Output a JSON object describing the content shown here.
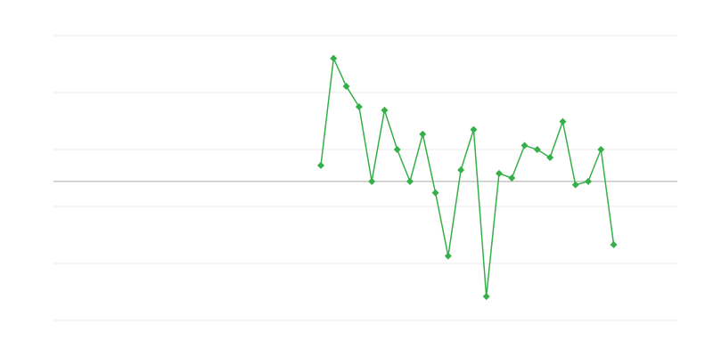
{
  "chart_data": {
    "type": "line",
    "title": "",
    "xlabel": "",
    "ylabel": "",
    "xlim": [
      0,
      49
    ],
    "ylim": [
      -2.44,
      2.56
    ],
    "grid": true,
    "gridlines_y": [
      2.56,
      1.56,
      0.56,
      -0.44,
      -1.44,
      -2.44
    ],
    "baseline_y": 0,
    "legend": "none",
    "colors": {
      "series": "#35b049",
      "grid": "#ebebeb",
      "baseline": "#aaaaaa"
    },
    "marker": "diamond",
    "series": [
      {
        "x": [
          21,
          22,
          23,
          24,
          25,
          26,
          27,
          28,
          29,
          30,
          31,
          32,
          33,
          34,
          35,
          36,
          37,
          38,
          39,
          40,
          41,
          42,
          43,
          44
        ],
        "values": [
          0.28,
          2.16,
          1.67,
          1.31,
          0,
          1.25,
          0.56,
          0,
          0.83,
          -0.2,
          -1.31,
          0.2,
          0.91,
          -2.02,
          0.14,
          0.06,
          0.63,
          0.56,
          0.42,
          1.05,
          -0.06,
          0,
          0.56,
          -1.11
        ]
      }
    ]
  }
}
